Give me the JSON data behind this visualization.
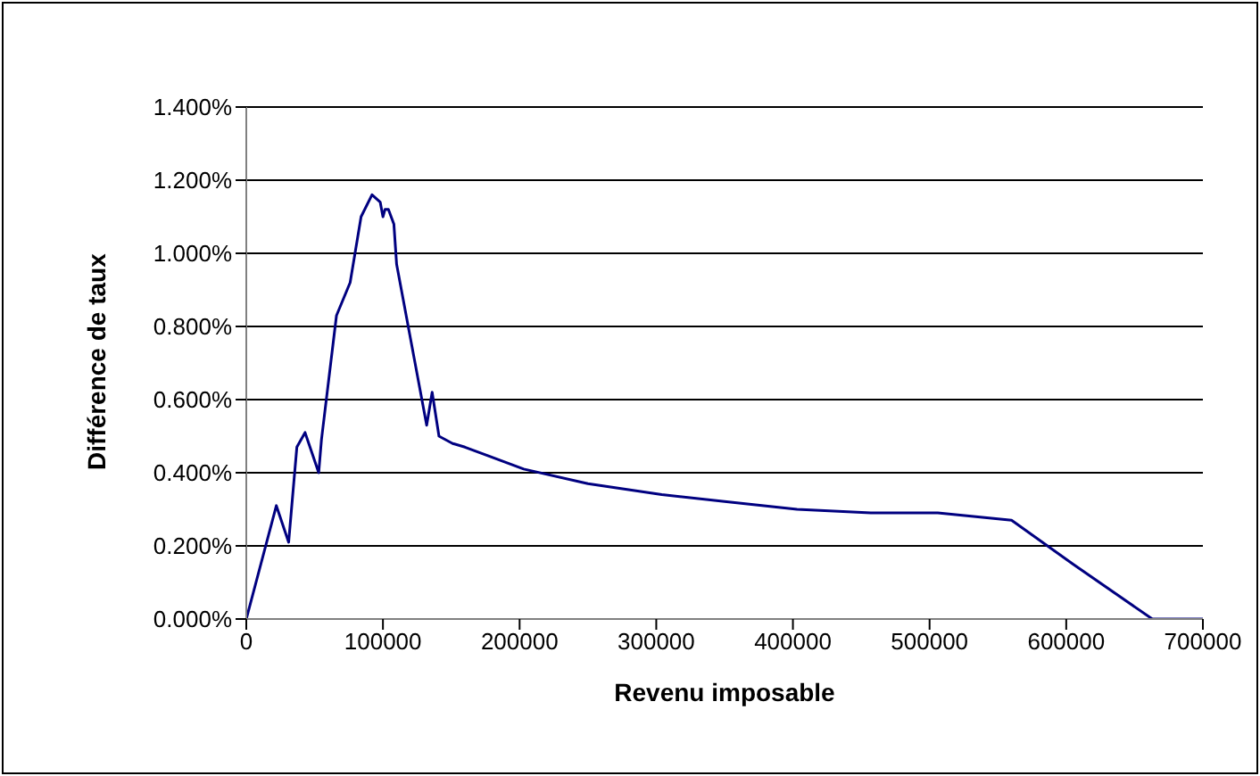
{
  "chart_data": {
    "type": "line",
    "xlabel": "Revenu imposable",
    "ylabel": "Différence de taux",
    "x": [
      0,
      22000,
      31000,
      37000,
      43000,
      53000,
      55000,
      66000,
      76000,
      84000,
      92000,
      98000,
      100000,
      101500,
      104000,
      108000,
      110000,
      132000,
      136000,
      141000,
      151000,
      160000,
      203000,
      250000,
      304000,
      353000,
      403000,
      457000,
      506000,
      560000,
      605000,
      663000,
      700000
    ],
    "series": [
      {
        "color": "#000080",
        "values": [
          0,
          0.31,
          0.21,
          0.47,
          0.51,
          0.4,
          0.49,
          0.83,
          0.92,
          1.1,
          1.16,
          1.14,
          1.1,
          1.12,
          1.12,
          1.08,
          0.97,
          0.53,
          0.62,
          0.5,
          0.48,
          0.47,
          0.41,
          0.37,
          0.34,
          0.32,
          0.3,
          0.29,
          0.29,
          0.27,
          0.15,
          0,
          0
        ]
      }
    ],
    "xlim": [
      0,
      700000
    ],
    "xticks": [
      0,
      100000,
      200000,
      300000,
      400000,
      500000,
      600000,
      700000
    ],
    "ylim": [
      0,
      1.4
    ],
    "yticks": [
      {
        "value": 0,
        "label": "0.000%"
      },
      {
        "value": 0.2,
        "label": "0.200%"
      },
      {
        "value": 0.4,
        "label": "0.400%"
      },
      {
        "value": 0.6,
        "label": "0.600%"
      },
      {
        "value": 0.8,
        "label": "0.800%"
      },
      {
        "value": 1,
        "label": "1.000%"
      },
      {
        "value": 1.2,
        "label": "1.200%"
      },
      {
        "value": 1.4,
        "label": "1.400%"
      }
    ],
    "grid": "y",
    "legend": false,
    "marker": "none",
    "line_style": "solid"
  }
}
